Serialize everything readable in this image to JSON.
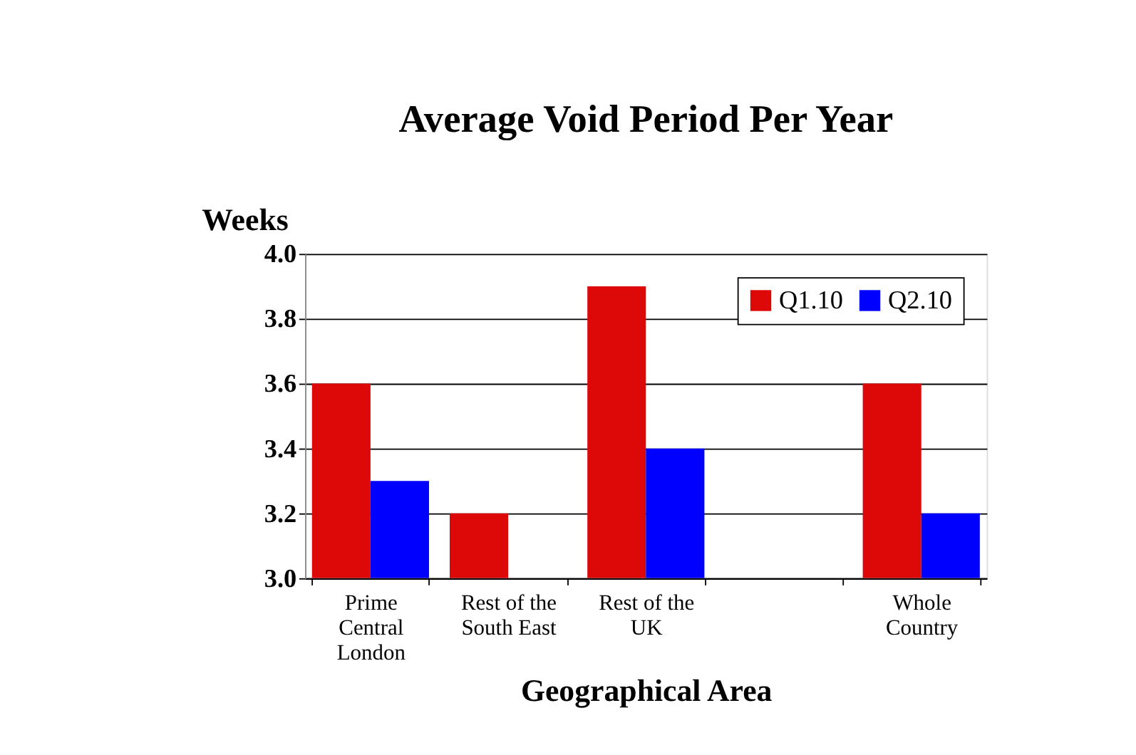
{
  "chart_data": {
    "type": "bar",
    "title": "Average Void Period Per Year",
    "xlabel": "Geographical Area",
    "ylabel": "Weeks",
    "categories": [
      "Prime Central London",
      "Rest of the South East",
      "Rest of the UK",
      null,
      "Whole Country"
    ],
    "series": [
      {
        "name": "Q1.10",
        "color": "#dd0808",
        "values": [
          3.6,
          3.2,
          3.9,
          null,
          3.6
        ]
      },
      {
        "name": "Q2.10",
        "color": "#0000ff",
        "values": [
          3.3,
          3.0,
          3.4,
          null,
          3.2
        ]
      }
    ],
    "ylim": [
      3.0,
      4.0
    ],
    "yticks": [
      {
        "value": 3.0,
        "label": "3.0"
      },
      {
        "value": 3.2,
        "label": "3.2"
      },
      {
        "value": 3.4,
        "label": "3.4"
      },
      {
        "value": 3.6,
        "label": "3.6"
      },
      {
        "value": 3.8,
        "label": "3.8"
      },
      {
        "value": 4.0,
        "label": "4.0"
      }
    ],
    "grid": "y",
    "legend": "top right"
  }
}
